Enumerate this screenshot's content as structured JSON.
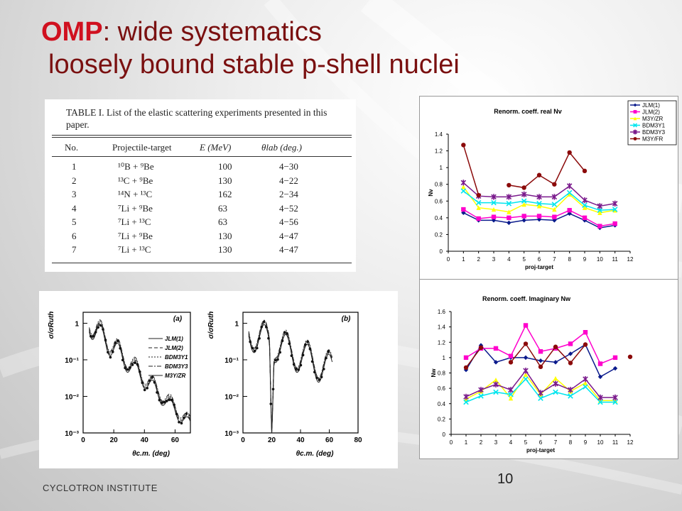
{
  "slide": {
    "title_acronym": "OMP",
    "title_rest": ": wide systematics",
    "title_line2": "loosely bound stable p-shell nuclei",
    "footer": "CYCLOTRON INSTITUTE",
    "page_number": "10"
  },
  "table": {
    "caption": "TABLE I.  List of the elastic scattering experiments presented in this paper.",
    "headers": [
      "No.",
      "Projectile-target",
      "E (MeV)",
      "θlab (deg.)"
    ],
    "rows": [
      [
        "1",
        "¹⁰B + ⁹Be",
        "100",
        "4−30"
      ],
      [
        "2",
        "¹³C + ⁹Be",
        "130",
        "4−22"
      ],
      [
        "3",
        "¹⁴N + ¹³C",
        "162",
        "2−34"
      ],
      [
        "4",
        "⁷Li + ⁹Be",
        "63",
        "4−52"
      ],
      [
        "5",
        "⁷Li + ¹³C",
        "63",
        "4−56"
      ],
      [
        "6",
        "⁷Li + ⁹Be",
        "130",
        "4−47"
      ],
      [
        "7",
        "⁷Li + ¹³C",
        "130",
        "4−47"
      ]
    ]
  },
  "chart_data": [
    {
      "type": "line",
      "title": "Renorm. coeff. real Nv",
      "xlabel": "proj-target",
      "ylabel": "Nv",
      "xlim": [
        0,
        12
      ],
      "ylim": [
        0,
        1.4
      ],
      "xticks": [
        0,
        1,
        2,
        3,
        4,
        5,
        6,
        7,
        8,
        9,
        10,
        11,
        12
      ],
      "yticks": [
        0,
        0.2,
        0.4,
        0.6,
        0.8,
        1,
        1.2,
        1.4
      ],
      "legend": "top-right",
      "series": [
        {
          "name": "JLM(1)",
          "color": "#0a1a8c",
          "marker": "diamond",
          "x": [
            1,
            2,
            3,
            4,
            5,
            6,
            7,
            8,
            9,
            10,
            11
          ],
          "y": [
            0.46,
            0.37,
            0.37,
            0.34,
            0.37,
            0.38,
            0.37,
            0.45,
            0.37,
            0.28,
            0.31
          ]
        },
        {
          "name": "JLM(2)",
          "color": "#ff00cc",
          "marker": "square",
          "x": [
            1,
            2,
            3,
            4,
            5,
            6,
            7,
            8,
            9,
            10,
            11
          ],
          "y": [
            0.5,
            0.39,
            0.41,
            0.4,
            0.42,
            0.42,
            0.41,
            0.49,
            0.4,
            0.3,
            0.33
          ]
        },
        {
          "name": "M3Y/ZR",
          "color": "#ffff00",
          "marker": "triangle",
          "x": [
            1,
            2,
            3,
            4,
            5,
            6,
            7,
            8,
            9,
            10,
            11
          ],
          "y": [
            0.77,
            0.52,
            0.5,
            0.47,
            0.56,
            0.54,
            0.5,
            0.68,
            0.52,
            0.46,
            0.49
          ]
        },
        {
          "name": "BDM3Y1",
          "color": "#00e5ee",
          "marker": "x",
          "x": [
            1,
            2,
            3,
            4,
            5,
            6,
            7,
            8,
            9,
            10,
            11
          ],
          "y": [
            0.72,
            0.58,
            0.58,
            0.57,
            0.6,
            0.57,
            0.56,
            0.7,
            0.55,
            0.49,
            0.5
          ]
        },
        {
          "name": "BDM3Y3",
          "color": "#7a1a8c",
          "marker": "star",
          "x": [
            1,
            2,
            3,
            4,
            5,
            6,
            7,
            8,
            9,
            10,
            11
          ],
          "y": [
            0.82,
            0.66,
            0.65,
            0.65,
            0.68,
            0.65,
            0.65,
            0.78,
            0.61,
            0.54,
            0.57
          ]
        },
        {
          "name": "M3Y/FR",
          "color": "#8b0a0a",
          "marker": "circle",
          "x": [
            1,
            2,
            4,
            5,
            6,
            7,
            8,
            9
          ],
          "y": [
            1.27,
            0.67,
            0.79,
            0.76,
            0.91,
            0.8,
            1.18,
            0.96
          ],
          "segments": [
            [
              1,
              2
            ],
            [
              4,
              5,
              6,
              7,
              8,
              9
            ]
          ]
        }
      ]
    },
    {
      "type": "line",
      "title": "Renorm. coeff. Imaginary Nw",
      "xlabel": "proj-target",
      "ylabel": "Nw",
      "xlim": [
        0,
        12
      ],
      "ylim": [
        0,
        1.6
      ],
      "xticks": [
        0,
        1,
        2,
        3,
        4,
        5,
        6,
        7,
        8,
        9,
        10,
        11,
        12
      ],
      "yticks": [
        0,
        0.2,
        0.4,
        0.6,
        0.8,
        1,
        1.2,
        1.4,
        1.6
      ],
      "series": [
        {
          "name": "JLM(1)",
          "color": "#0a1a8c",
          "marker": "diamond",
          "x": [
            1,
            2,
            3,
            4,
            5,
            6,
            7,
            8,
            9,
            10,
            11
          ],
          "y": [
            0.84,
            1.16,
            0.94,
            1.0,
            1.0,
            0.96,
            0.94,
            1.05,
            1.17,
            0.75,
            0.86
          ]
        },
        {
          "name": "JLM(2)",
          "color": "#ff00cc",
          "marker": "square",
          "x": [
            1,
            2,
            3,
            4,
            5,
            6,
            7,
            8,
            9,
            10,
            11
          ],
          "y": [
            1.0,
            1.12,
            1.12,
            1.02,
            1.42,
            1.08,
            1.12,
            1.18,
            1.33,
            0.92,
            1.0
          ]
        },
        {
          "name": "M3Y/ZR",
          "color": "#ffff00",
          "marker": "triangle",
          "x": [
            1,
            2,
            3,
            4,
            5,
            6,
            7,
            8,
            9,
            10,
            11
          ],
          "y": [
            0.46,
            0.56,
            0.71,
            0.47,
            0.78,
            0.52,
            0.73,
            0.56,
            0.67,
            0.44,
            0.44
          ]
        },
        {
          "name": "BDM3Y1",
          "color": "#00e5ee",
          "marker": "x",
          "x": [
            1,
            2,
            3,
            4,
            5,
            6,
            7,
            8,
            9,
            10,
            11
          ],
          "y": [
            0.42,
            0.5,
            0.55,
            0.52,
            0.72,
            0.47,
            0.55,
            0.5,
            0.62,
            0.42,
            0.42
          ]
        },
        {
          "name": "BDM3Y3",
          "color": "#7a1a8c",
          "marker": "star",
          "x": [
            1,
            2,
            3,
            4,
            5,
            6,
            7,
            8,
            9,
            10,
            11
          ],
          "y": [
            0.49,
            0.58,
            0.65,
            0.58,
            0.83,
            0.54,
            0.66,
            0.58,
            0.72,
            0.48,
            0.48
          ]
        },
        {
          "name": "M3Y/FR",
          "color": "#8b0a0a",
          "marker": "circle",
          "x": [
            1,
            2,
            4,
            5,
            6,
            7,
            8,
            9,
            12
          ],
          "y": [
            0.87,
            1.13,
            0.94,
            1.18,
            0.88,
            1.14,
            0.93,
            1.17,
            1.01
          ],
          "segments": [
            [
              1,
              2
            ],
            [
              4,
              5,
              6,
              7,
              8,
              9
            ],
            [
              12
            ]
          ]
        }
      ]
    },
    {
      "type": "scatter",
      "panel": "(a)",
      "xlabel": "θc.m. (deg)",
      "ylabel": "σ/σRuth",
      "xlim": [
        0,
        70
      ],
      "yscale": "log",
      "ylim_log10": [
        -3,
        0.3
      ],
      "xticks": [
        0,
        20,
        40,
        60
      ],
      "ytick_labels": [
        "1",
        "10⁻¹",
        "10⁻²",
        "10⁻³"
      ],
      "legend": [
        "JLM(1)",
        "JLM(2)",
        "BDM3Y1",
        "BDM3Y3",
        "M3Y/ZR"
      ]
    },
    {
      "type": "scatter",
      "panel": "(b)",
      "xlabel": "θc.m. (deg)",
      "ylabel": "σ/σRuth",
      "xlim": [
        0,
        80
      ],
      "yscale": "log",
      "ylim_log10": [
        -3,
        0.3
      ],
      "xticks": [
        0,
        20,
        40,
        60,
        80
      ],
      "ytick_labels": [
        "1",
        "10⁻¹",
        "10⁻²",
        "10⁻³"
      ]
    }
  ]
}
